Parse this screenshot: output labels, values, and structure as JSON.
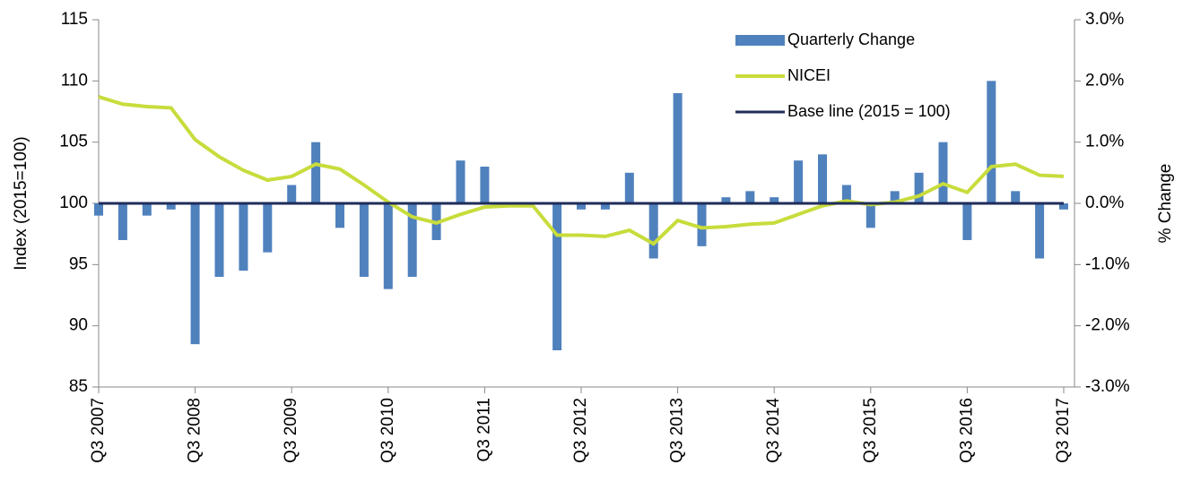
{
  "chart_data": {
    "type": "bar",
    "y_label": "Index (2015=100)",
    "y2_label": "% Change",
    "categories": [
      "Q3 2007",
      null,
      null,
      null,
      "Q3 2008",
      null,
      null,
      null,
      "Q3 2009",
      null,
      null,
      null,
      "Q3 2010",
      null,
      null,
      null,
      "Q3 2011",
      null,
      null,
      null,
      "Q3 2012",
      null,
      null,
      null,
      "Q3 2013",
      null,
      null,
      null,
      "Q3 2014",
      null,
      null,
      null,
      "Q3 2015",
      null,
      null,
      null,
      "Q3 2016",
      null,
      null,
      null,
      "Q3 2017"
    ],
    "series": [
      {
        "name": "Quarterly Change",
        "type": "bar",
        "axis": "y2",
        "color": "#4f81bd",
        "values": [
          -0.2,
          -0.6,
          -0.2,
          -0.1,
          -2.3,
          -1.2,
          -1.1,
          -0.8,
          0.3,
          1.0,
          -0.4,
          -1.2,
          -1.4,
          -1.2,
          -0.6,
          0.7,
          0.6,
          0,
          0,
          -2.4,
          -0.1,
          -0.1,
          0.5,
          -0.9,
          1.8,
          -0.7,
          0.1,
          0.2,
          0.1,
          0.7,
          0.8,
          0.3,
          -0.4,
          0.2,
          0.5,
          1.0,
          -0.6,
          2.0,
          0.2,
          -0.9,
          -0.1
        ]
      },
      {
        "name": "NICEI",
        "type": "line",
        "color": "#c8dc3c",
        "values": [
          108.7,
          108.1,
          107.9,
          107.8,
          105.2,
          103.8,
          102.7,
          101.9,
          102.2,
          103.2,
          102.8,
          101.5,
          100.1,
          98.9,
          98.4,
          99.1,
          99.7,
          99.8,
          99.8,
          97.4,
          97.4,
          97.3,
          97.8,
          96.7,
          98.6,
          98.0,
          98.1,
          98.3,
          98.4,
          99.1,
          99.8,
          100.2,
          99.9,
          100.1,
          100.6,
          101.6,
          100.9,
          103.0,
          103.2,
          102.3,
          102.2
        ]
      },
      {
        "name": "Base line (2015 = 100)",
        "type": "line",
        "color": "#1f2d5a",
        "values": [
          100,
          100,
          100,
          100,
          100,
          100,
          100,
          100,
          100,
          100,
          100,
          100,
          100,
          100,
          100,
          100,
          100,
          100,
          100,
          100,
          100,
          100,
          100,
          100,
          100,
          100,
          100,
          100,
          100,
          100,
          100,
          100,
          100,
          100,
          100,
          100,
          100,
          100,
          100,
          100,
          100
        ]
      }
    ],
    "ylim": [
      85,
      115
    ],
    "yticks": [
      85,
      90,
      95,
      100,
      105,
      110,
      115
    ],
    "y2lim": [
      -3,
      3
    ],
    "y2ticks": [
      {
        "value": -3,
        "label": "-3.0%"
      },
      {
        "value": -2,
        "label": "-2.0%"
      },
      {
        "value": -1,
        "label": "-1.0%"
      },
      {
        "value": 0,
        "label": "0.0%"
      },
      {
        "value": 1,
        "label": "1.0%"
      },
      {
        "value": 2,
        "label": "2.0%"
      },
      {
        "value": 3,
        "label": "3.0%"
      }
    ],
    "legend": "upper right"
  }
}
